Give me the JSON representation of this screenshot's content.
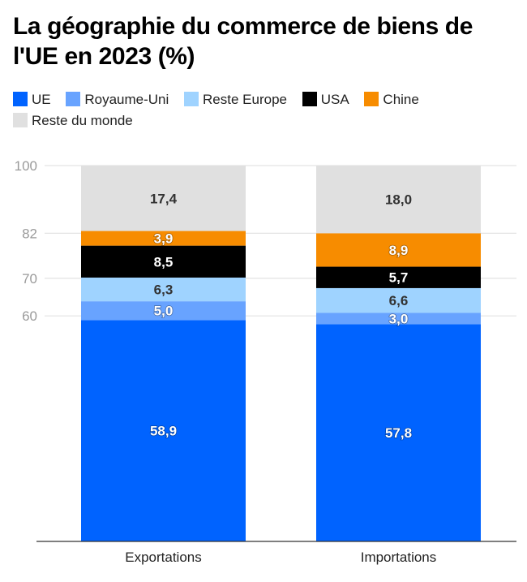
{
  "title": "La géographie du commerce de biens de l'UE en 2023 (%)",
  "legend": [
    {
      "label": "UE",
      "color": "#0063ff"
    },
    {
      "label": "Royaume-Uni",
      "color": "#68a3ff"
    },
    {
      "label": "Reste Europe",
      "color": "#9fd3ff"
    },
    {
      "label": "USA",
      "color": "#000000"
    },
    {
      "label": "Chine",
      "color": "#f78c00"
    },
    {
      "label": "Reste du monde",
      "color": "#e0e0e0"
    }
  ],
  "chart_data": {
    "type": "bar",
    "stacked": true,
    "title": "La géographie du commerce de biens de l'UE en 2023 (%)",
    "xlabel": "",
    "ylabel": "",
    "categories": [
      "Exportations",
      "Importations"
    ],
    "ylim": [
      0,
      100
    ],
    "yticks": [
      60,
      70,
      82,
      100
    ],
    "grid": true,
    "legend_position": "top",
    "series": [
      {
        "name": "UE",
        "color": "#0063ff",
        "label_color": "light",
        "values": [
          58.9,
          57.8
        ],
        "labels": [
          "58,9",
          "57,8"
        ]
      },
      {
        "name": "Royaume-Uni",
        "color": "#68a3ff",
        "label_color": "light",
        "values": [
          5.0,
          3.0
        ],
        "labels": [
          "5,0",
          "3,0"
        ]
      },
      {
        "name": "Reste Europe",
        "color": "#9fd3ff",
        "label_color": "dark",
        "values": [
          6.3,
          6.6
        ],
        "labels": [
          "6,3",
          "6,6"
        ]
      },
      {
        "name": "USA",
        "color": "#000000",
        "label_color": "light",
        "values": [
          8.5,
          5.7
        ],
        "labels": [
          "8,5",
          "5,7"
        ]
      },
      {
        "name": "Chine",
        "color": "#f78c00",
        "label_color": "light",
        "values": [
          3.9,
          8.9
        ],
        "labels": [
          "3,9",
          "8,9"
        ]
      },
      {
        "name": "Reste du monde",
        "color": "#e0e0e0",
        "label_color": "dark",
        "values": [
          17.4,
          18.0
        ],
        "labels": [
          "17,4",
          "18,0"
        ]
      }
    ]
  }
}
